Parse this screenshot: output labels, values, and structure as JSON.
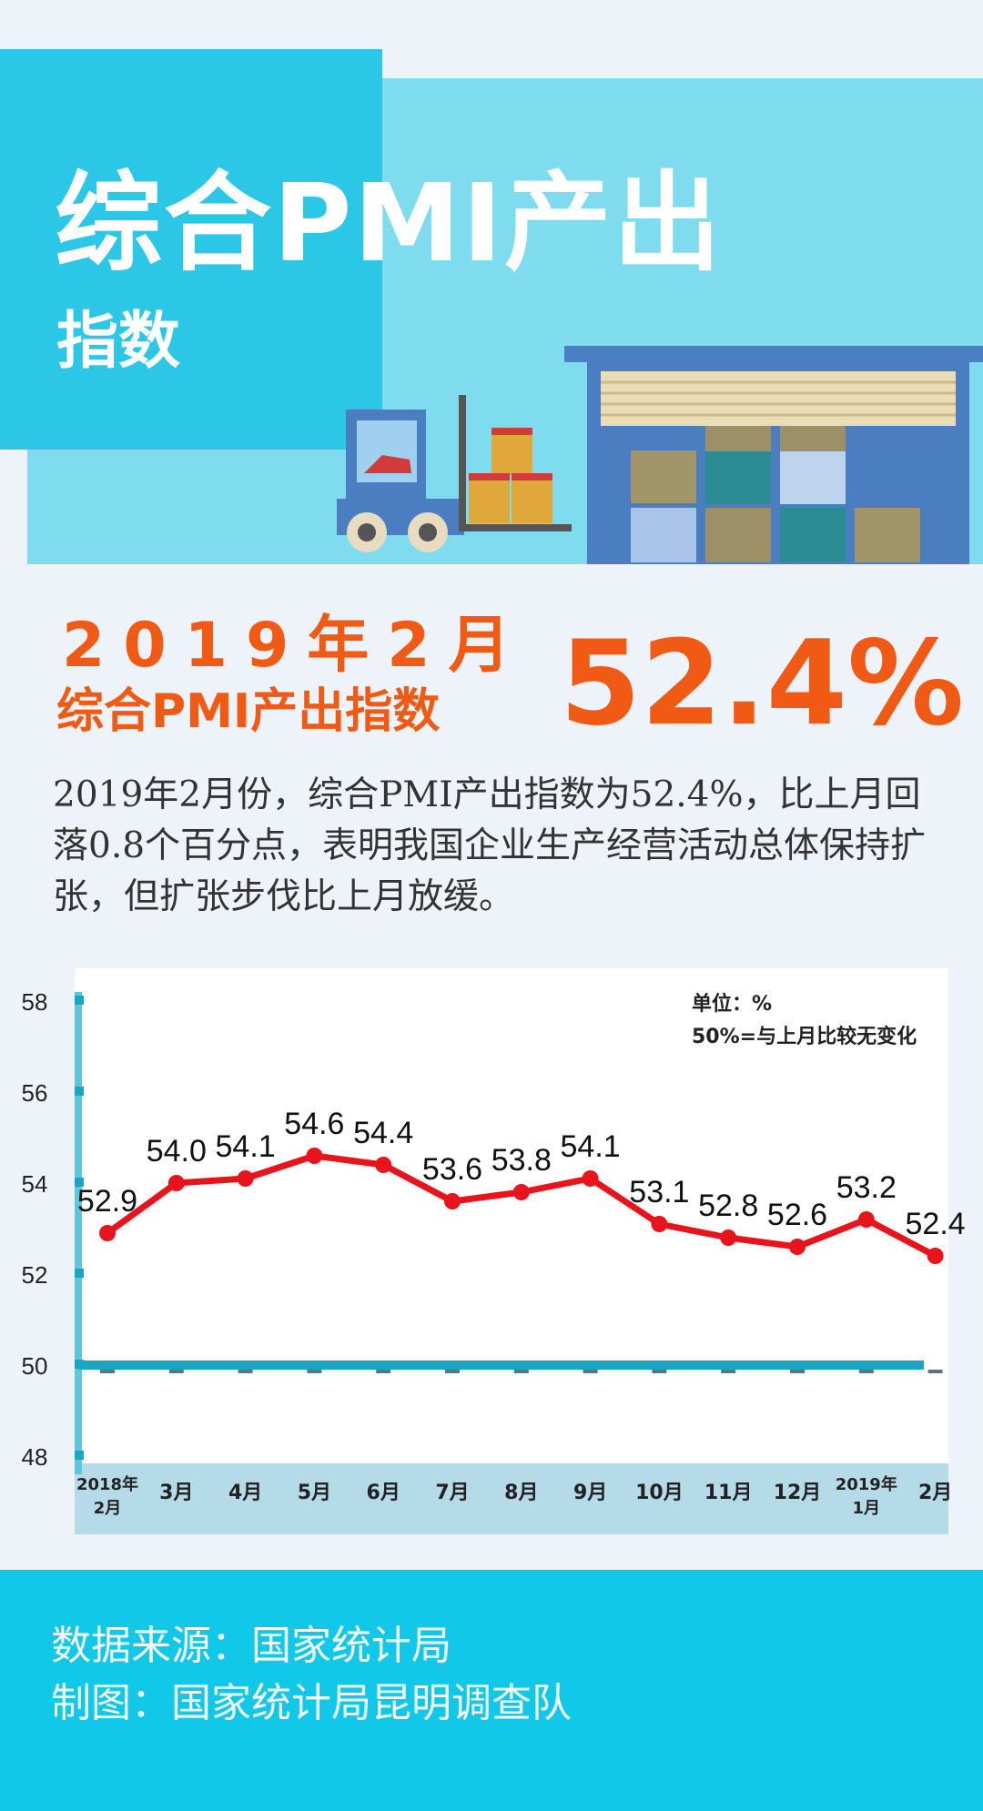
{
  "header": {
    "title": "综合PMI产出",
    "subtitle": "指数"
  },
  "headline": {
    "date": "2019年2月",
    "label": "综合PMI产出指数",
    "value": "52.4%"
  },
  "description": "2019年2月份，综合PMI产出指数为52.4%，比上月回落0.8个百分点，表明我国企业生产经营活动总体保持扩张，但扩张步伐比上月放缓。",
  "chart_data": {
    "type": "line",
    "title": "",
    "xlabel": "",
    "ylabel": "",
    "ylim": [
      48,
      58
    ],
    "yticks": [
      "58",
      "56",
      "54",
      "52",
      "50",
      "48"
    ],
    "grid": false,
    "categories": [
      "2018年\n2月",
      "3月",
      "4月",
      "5月",
      "6月",
      "7月",
      "8月",
      "9月",
      "10月",
      "11月",
      "12月",
      "2019年\n1月",
      "2月"
    ],
    "series": [
      {
        "values": [
          52.9,
          54.0,
          54.1,
          54.6,
          54.4,
          53.6,
          53.8,
          54.1,
          53.1,
          52.8,
          52.6,
          53.2,
          52.4
        ],
        "labels": [
          "52.9",
          "54.0",
          "54.1",
          "54.6",
          "54.4",
          "53.6",
          "53.8",
          "54.1",
          "53.1",
          "52.8",
          "52.6",
          "53.2",
          "52.4"
        ],
        "color": "#e8141c"
      }
    ],
    "reference_line": {
      "value": 50,
      "color": "#1aa6c2"
    },
    "notes": [
      "单位：%",
      "50%=与上月比较无变化"
    ],
    "legend_position": "top-right"
  },
  "footer": {
    "source": "数据来源：国家统计局",
    "credit": "制图：国家统计局昆明调查队"
  },
  "colors": {
    "accent": "#f05a14",
    "hero_light": "#7edcee",
    "hero_dark": "#2cc6e6",
    "footer_bg": "#12c8e9",
    "line": "#e8141c",
    "reference": "#1aa6c2"
  }
}
